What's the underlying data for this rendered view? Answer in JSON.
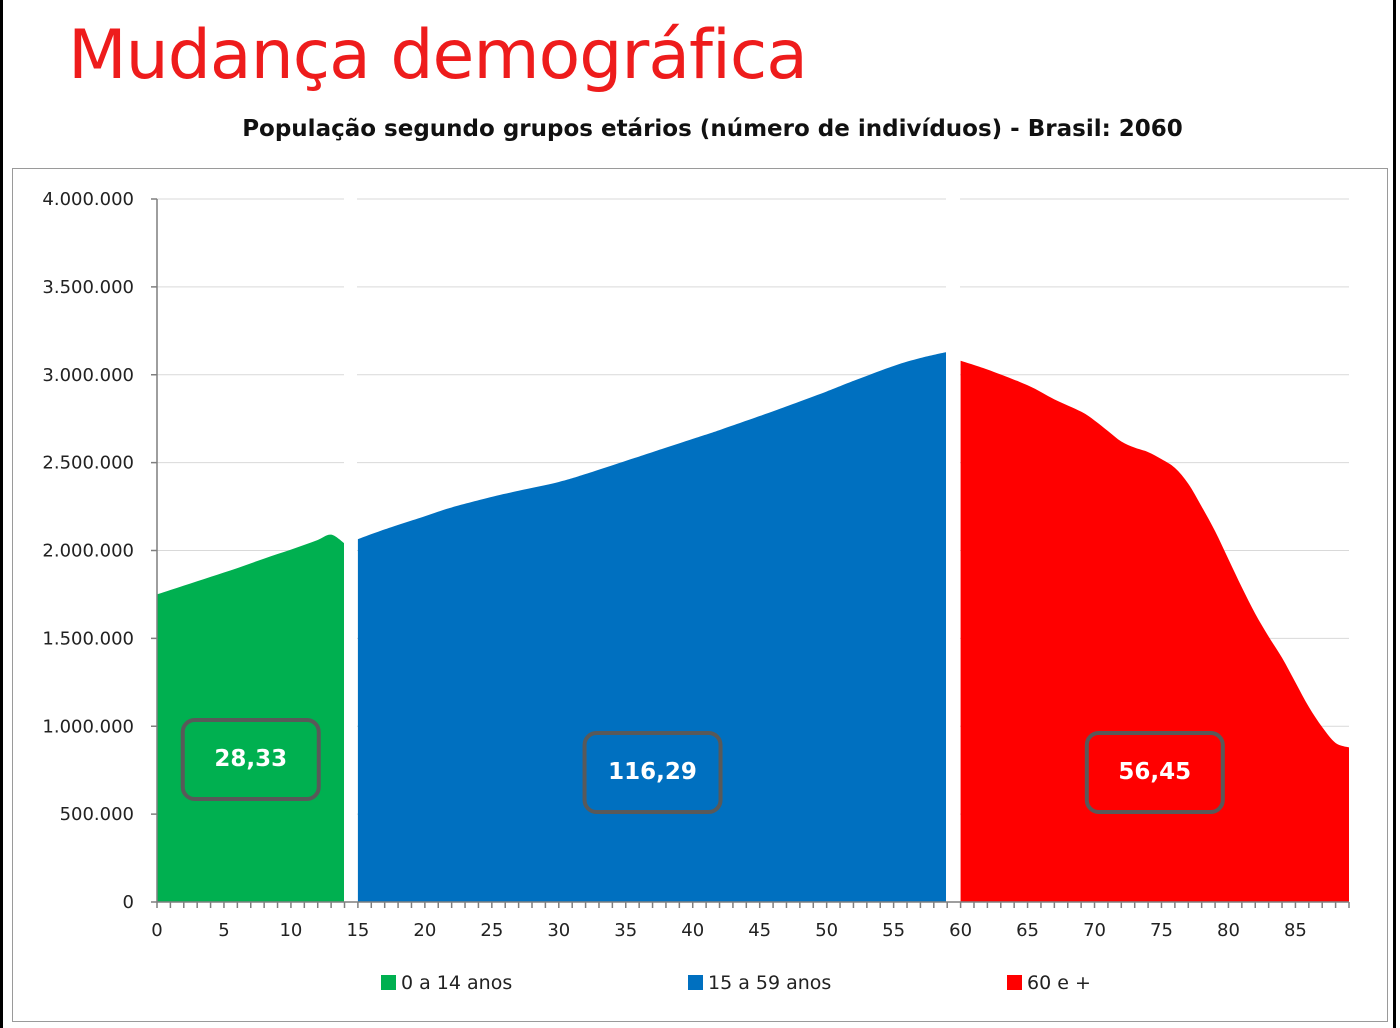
{
  "page": {
    "title": "Mudança demográfica"
  },
  "chart_data": {
    "type": "area",
    "title": "População segundo grupos etários  (número de indivíduos) - Brasil: 2060",
    "xlabel": "",
    "ylabel": "",
    "xlim": [
      0,
      89
    ],
    "ylim": [
      0,
      4000000
    ],
    "x_ticks": [
      0,
      5,
      10,
      15,
      20,
      25,
      30,
      35,
      40,
      45,
      50,
      55,
      60,
      65,
      70,
      75,
      80,
      85
    ],
    "x_tick_labels": [
      "0",
      "5",
      "10",
      "15",
      "20",
      "25",
      "30",
      "35",
      "40",
      "45",
      "50",
      "55",
      "60",
      "65",
      "70",
      "75",
      "80",
      "85"
    ],
    "y_ticks": [
      0,
      500000,
      1000000,
      1500000,
      2000000,
      2500000,
      3000000,
      3500000,
      4000000
    ],
    "y_tick_labels": [
      "0",
      "500.000",
      "1.000.000",
      "1.500.000",
      "2.000.000",
      "2.500.000",
      "3.000.000",
      "3.500.000",
      "4.000.000"
    ],
    "grid": true,
    "legend_position": "bottom",
    "series": [
      {
        "name": "0 a 14 anos",
        "color": "#00b050",
        "box_label": "28,33",
        "x": [
          0,
          1,
          2,
          3,
          4,
          5,
          6,
          7,
          8,
          9,
          10,
          11,
          12,
          13,
          14
        ],
        "values": [
          1750000,
          1775000,
          1800000,
          1825000,
          1850000,
          1875000,
          1900000,
          1927000,
          1954000,
          1980000,
          2005000,
          2032000,
          2060000,
          2090000,
          2040000
        ]
      },
      {
        "name": "15 a 59 anos",
        "color": "#0070c0",
        "box_label": "116,29",
        "x": [
          15,
          17,
          20,
          22,
          25,
          27,
          30,
          32,
          35,
          37,
          40,
          42,
          45,
          47,
          50,
          52,
          55,
          57,
          59
        ],
        "values": [
          2065000,
          2120000,
          2195000,
          2245000,
          2305000,
          2340000,
          2390000,
          2435000,
          2510000,
          2560000,
          2635000,
          2685000,
          2765000,
          2820000,
          2905000,
          2965000,
          3050000,
          3095000,
          3130000
        ]
      },
      {
        "name": "60 e +",
        "color": "#ff0000",
        "box_label": "56,45",
        "x": [
          60,
          62,
          65,
          67,
          69,
          70,
          71,
          72,
          73,
          74,
          75,
          76,
          77,
          78,
          79,
          80,
          81,
          82,
          83,
          84,
          85,
          86,
          87,
          88,
          89
        ],
        "values": [
          3080000,
          3030000,
          2940000,
          2860000,
          2790000,
          2740000,
          2680000,
          2620000,
          2585000,
          2560000,
          2520000,
          2470000,
          2380000,
          2250000,
          2110000,
          1950000,
          1790000,
          1640000,
          1510000,
          1390000,
          1250000,
          1110000,
          995000,
          905000,
          880000
        ]
      }
    ]
  }
}
